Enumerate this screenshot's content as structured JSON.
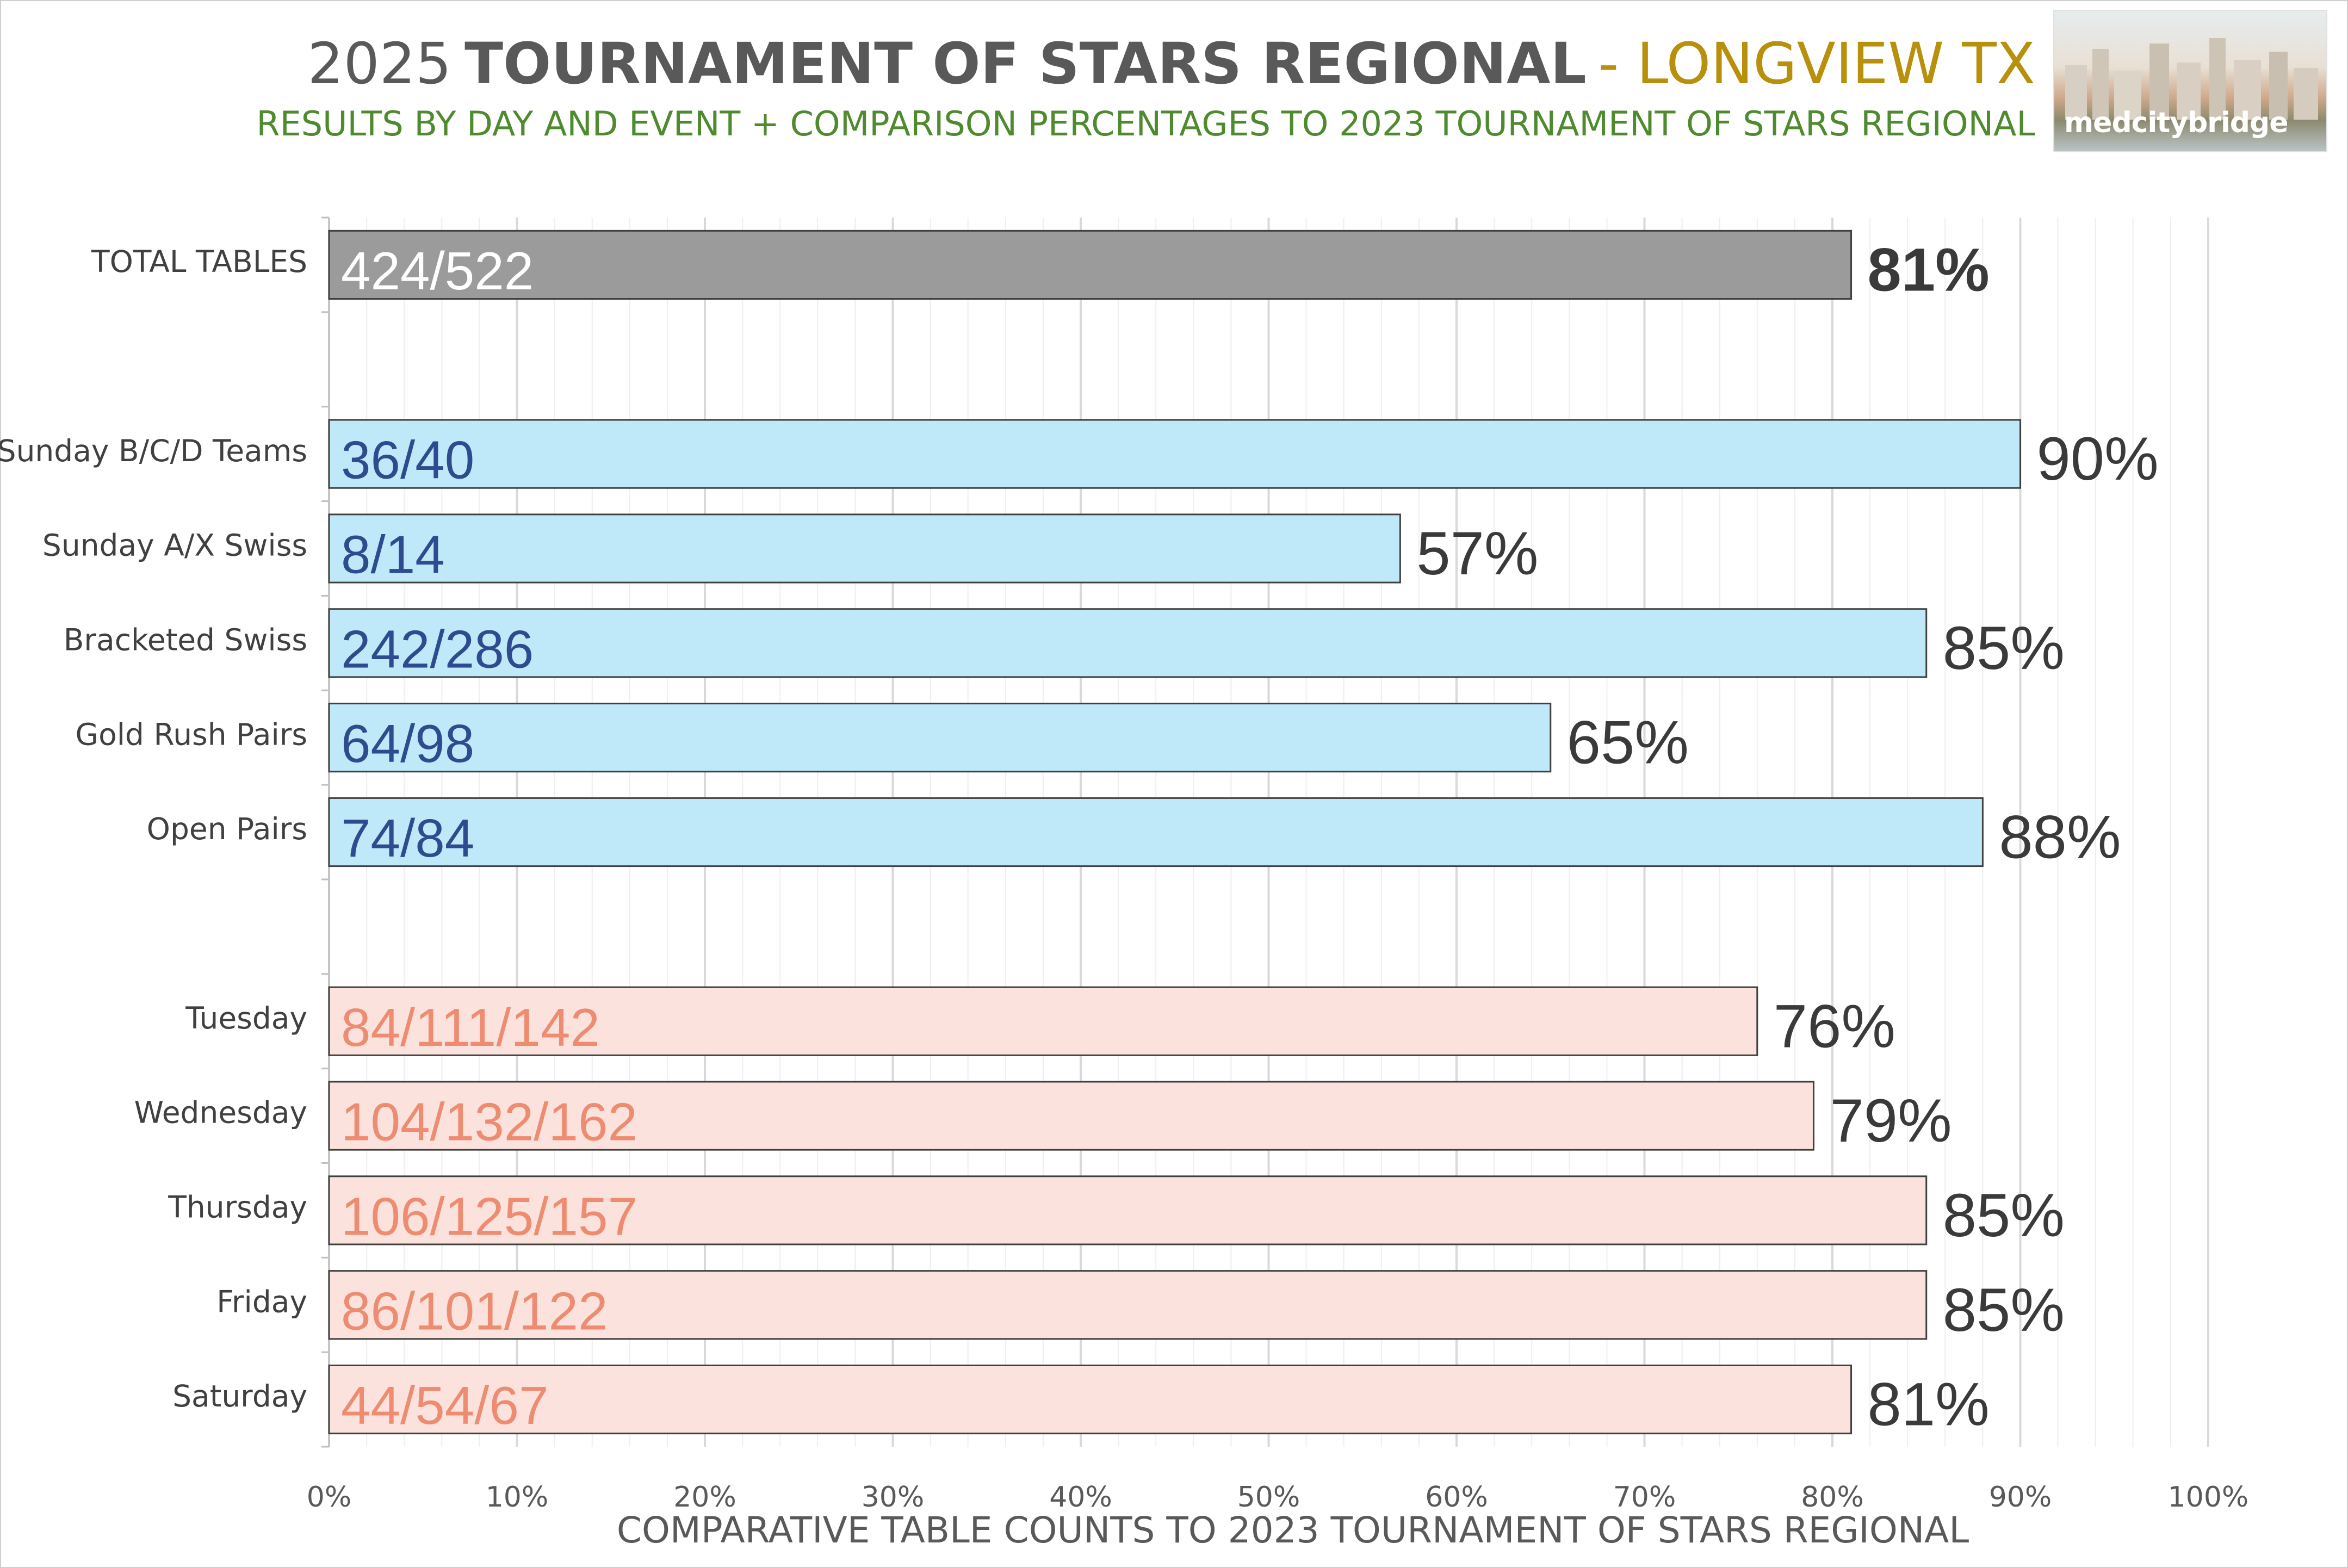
{
  "header": {
    "title_year": "2025",
    "title_main": "TOURNAMENT OF STARS REGIONAL",
    "title_location": "- LONGVIEW TX",
    "subtitle": "RESULTS BY DAY AND EVENT + COMPARISON PERCENTAGES TO 2023 TOURNAMENT OF STARS REGIONAL",
    "logo_text": "medcitybridge"
  },
  "colors": {
    "total_fill": "#9b9b9b",
    "total_label": "#ffffff",
    "event_fill": "#bfe8f8",
    "event_label": "#2f4b8f",
    "day_fill": "#fbe2dc",
    "day_label": "#ee8c72",
    "bar_border": "#404040",
    "gridline": "#d9d9d9",
    "minor_gridline": "#eeeeee"
  },
  "chart_data": {
    "type": "bar",
    "orientation": "horizontal",
    "xlabel": "COMPARATIVE TABLE COUNTS TO 2023 TOURNAMENT OF STARS REGIONAL",
    "xlim": [
      0,
      1
    ],
    "x_ticks": [
      "0%",
      "10%",
      "20%",
      "30%",
      "40%",
      "50%",
      "60%",
      "70%",
      "80%",
      "90%",
      "100%"
    ],
    "grid": true,
    "bars": [
      {
        "category": "TOTAL TABLES",
        "group": "total",
        "value": 0.81,
        "bar_label": "424/522",
        "value_label": "81%",
        "bold": true
      },
      {
        "category": "Sunday B/C/D Teams",
        "group": "event",
        "value": 0.9,
        "bar_label": "36/40",
        "value_label": "90%"
      },
      {
        "category": "Sunday A/X Swiss",
        "group": "event",
        "value": 0.57,
        "bar_label": "8/14",
        "value_label": "57%"
      },
      {
        "category": "Bracketed Swiss",
        "group": "event",
        "value": 0.85,
        "bar_label": "242/286",
        "value_label": "85%"
      },
      {
        "category": "Gold Rush Pairs",
        "group": "event",
        "value": 0.65,
        "bar_label": "64/98",
        "value_label": "65%"
      },
      {
        "category": "Open Pairs",
        "group": "event",
        "value": 0.88,
        "bar_label": "74/84",
        "value_label": "88%"
      },
      {
        "category": "Tuesday",
        "group": "day",
        "value": 0.76,
        "bar_label": "84/111/142",
        "value_label": "76%"
      },
      {
        "category": "Wednesday",
        "group": "day",
        "value": 0.79,
        "bar_label": "104/132/162",
        "value_label": "79%"
      },
      {
        "category": "Thursday",
        "group": "day",
        "value": 0.85,
        "bar_label": "106/125/157",
        "value_label": "85%"
      },
      {
        "category": "Friday",
        "group": "day",
        "value": 0.85,
        "bar_label": "86/101/122",
        "value_label": "85%"
      },
      {
        "category": "Saturday",
        "group": "day",
        "value": 0.81,
        "bar_label": "44/54/67",
        "value_label": "81%"
      }
    ]
  }
}
